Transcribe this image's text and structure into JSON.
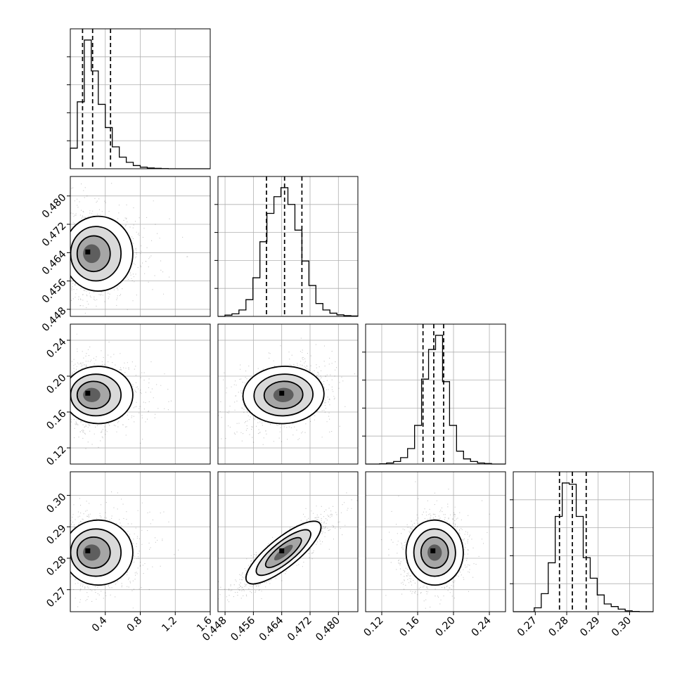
{
  "chart_data": {
    "type": "corner",
    "grid": true,
    "variables": [
      {
        "range": [
          0.0,
          1.6
        ],
        "ticks": [
          0.4,
          0.8,
          1.2,
          1.6
        ],
        "tick_labels": [
          "0.4",
          "0.8",
          "1.2",
          "1.6"
        ],
        "quantiles": [
          0.14,
          0.255,
          0.46
        ]
      },
      {
        "range": [
          0.446,
          0.4855
        ],
        "ticks": [
          0.448,
          0.456,
          0.464,
          0.472,
          0.48
        ],
        "tick_labels": [
          "0.448",
          "0.456",
          "0.464",
          "0.472",
          "0.480"
        ],
        "quantiles": [
          0.4597,
          0.4648,
          0.4697
        ]
      },
      {
        "range": [
          0.102,
          0.258
        ],
        "ticks": [
          0.12,
          0.16,
          0.2,
          0.24
        ],
        "tick_labels": [
          "0.12",
          "0.16",
          "0.20",
          "0.24"
        ],
        "quantiles": [
          0.166,
          0.178,
          0.189
        ]
      },
      {
        "range": [
          0.263,
          0.3075
        ],
        "ticks": [
          0.27,
          0.28,
          0.29,
          0.3
        ],
        "tick_labels": [
          "0.27",
          "0.28",
          "0.29",
          "0.30"
        ],
        "quantiles": [
          0.2777,
          0.2818,
          0.2862
        ]
      }
    ],
    "histograms": [
      [
        0.16,
        0.52,
        1.0,
        0.76,
        0.5,
        0.32,
        0.17,
        0.09,
        0.05,
        0.025,
        0.012,
        0.006,
        0.003,
        0.001,
        0.0,
        0.0,
        0.0,
        0.0,
        0.0,
        0.0
      ],
      [
        0.0,
        0.01,
        0.02,
        0.05,
        0.13,
        0.3,
        0.58,
        0.8,
        0.93,
        1.0,
        0.87,
        0.67,
        0.43,
        0.24,
        0.1,
        0.05,
        0.025,
        0.012,
        0.006,
        0.003
      ],
      [
        0.0,
        0.0,
        0.002,
        0.008,
        0.02,
        0.05,
        0.12,
        0.3,
        0.66,
        0.89,
        1.0,
        0.64,
        0.3,
        0.1,
        0.04,
        0.02,
        0.008,
        0.004,
        0.0,
        0.0
      ],
      [
        0.0,
        0.0,
        0.0,
        0.03,
        0.14,
        0.38,
        0.74,
        1.0,
        0.99,
        0.74,
        0.42,
        0.26,
        0.13,
        0.06,
        0.04,
        0.02,
        0.007,
        0.002,
        0.0,
        0.0
      ]
    ],
    "pairs": [
      {
        "x": 0,
        "y": 1,
        "center": [
          0.22,
          0.4637
        ],
        "spread": [
          0.18,
          0.0048
        ],
        "corr": 0.0
      },
      {
        "x": 0,
        "y": 2,
        "center": [
          0.22,
          0.179
        ],
        "spread": [
          0.18,
          0.0145
        ],
        "corr": 0.0
      },
      {
        "x": 1,
        "y": 2,
        "center": [
          0.4645,
          0.179
        ],
        "spread": [
          0.0052,
          0.0145
        ],
        "corr": 0.25
      },
      {
        "x": 0,
        "y": 3,
        "center": [
          0.22,
          0.2818
        ],
        "spread": [
          0.18,
          0.0047
        ],
        "corr": 0.0
      },
      {
        "x": 1,
        "y": 3,
        "center": [
          0.4645,
          0.2818
        ],
        "spread": [
          0.0052,
          0.0047
        ],
        "corr": 0.88
      },
      {
        "x": 2,
        "y": 3,
        "center": [
          0.179,
          0.2818
        ],
        "spread": [
          0.0145,
          0.0047
        ],
        "corr": 0.1
      }
    ]
  }
}
